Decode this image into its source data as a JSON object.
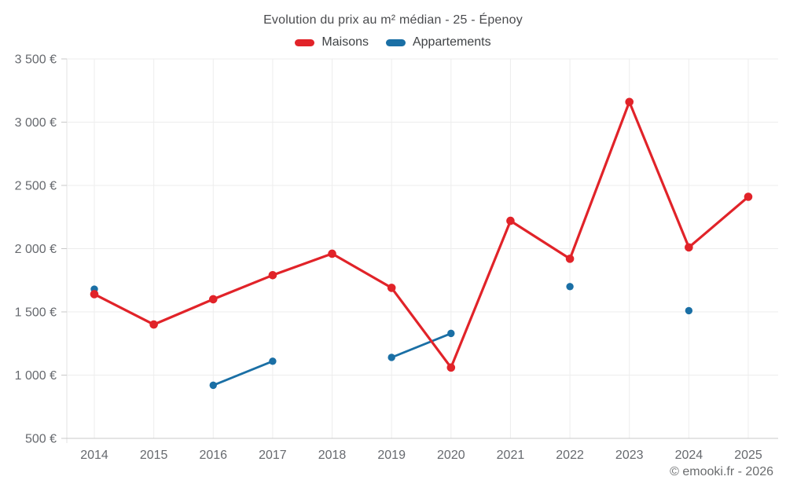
{
  "title": "Evolution du prix au m² médian - 25 - Épenoy",
  "legend": {
    "items": [
      {
        "label": "Maisons",
        "color": "#e12329"
      },
      {
        "label": "Appartements",
        "color": "#1a6fa5"
      }
    ]
  },
  "credit": "© emooki.fr - 2026",
  "chart_data": {
    "type": "line",
    "title": "Evolution du prix au m² médian - 25 - Épenoy",
    "x": [
      "2014",
      "2015",
      "2016",
      "2017",
      "2018",
      "2019",
      "2020",
      "2021",
      "2022",
      "2023",
      "2024",
      "2025"
    ],
    "ylim": [
      500,
      3500
    ],
    "ytick_step": 500,
    "ytick_labels": [
      "500 €",
      "1 000 €",
      "1 500 €",
      "2 000 €",
      "2 500 €",
      "3 000 €",
      "3 500 €"
    ],
    "grid": true,
    "legend_position": "top",
    "series": [
      {
        "name": "Maisons",
        "color": "#e12329",
        "values": [
          1640,
          1400,
          1600,
          1790,
          1960,
          1690,
          1060,
          2220,
          1920,
          3160,
          2010,
          2410
        ]
      },
      {
        "name": "Appartements",
        "color": "#1a6fa5",
        "values": [
          1680,
          null,
          920,
          1110,
          null,
          1140,
          1330,
          null,
          1700,
          null,
          1510,
          null
        ]
      }
    ]
  }
}
